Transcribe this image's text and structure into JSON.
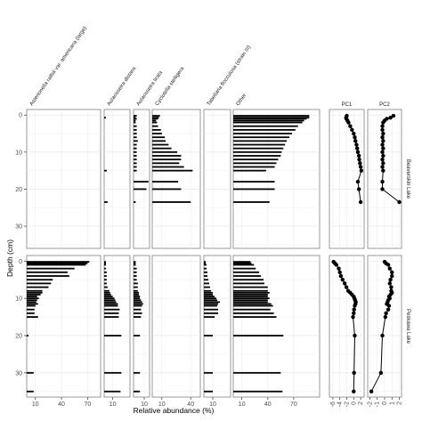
{
  "chart_data": {
    "type": "stratigraphic-diagram",
    "xlabel": "Relative abundance (%)",
    "ylabel": "Depth (cm)",
    "taxa": [
      "Asterionella ralfsii var. americana (large)",
      "Aulacoseira distans",
      "Aulacoseira lirata",
      "Cyclotella stelligera",
      "Tabellaria flocculosa (strain III)",
      "Other"
    ],
    "pc_panels": [
      "PC1",
      "PC2"
    ],
    "lakes": [
      "Beaverskin Lake",
      "Peskawa Lake"
    ],
    "depth_ticks": [
      0,
      10,
      20,
      30
    ],
    "abundance_ticks": [
      10,
      40,
      70
    ],
    "pc1_ticks": [
      -6,
      -4,
      -2,
      0,
      2
    ],
    "pc2_ticks": [
      -2,
      -1,
      0,
      1,
      2
    ],
    "beaverskin": {
      "depth_range": [
        -1.5,
        36
      ],
      "depths": [
        0.2,
        0.7,
        1,
        1.5,
        2,
        3,
        4,
        5,
        6,
        7,
        8,
        9,
        10,
        11,
        12,
        13,
        14,
        15,
        18,
        20,
        23.5
      ],
      "values": {
        "Asterionella ralfsii var. americana (large)": [
          0,
          0,
          0,
          0,
          0,
          0,
          0,
          0,
          0,
          0,
          0,
          0,
          0,
          0,
          0,
          0,
          0,
          0,
          0,
          0,
          0
        ],
        "Aulacoseira distans": [
          0,
          2,
          0,
          0,
          0,
          0,
          0,
          0,
          0,
          0,
          0,
          0,
          0,
          0,
          0,
          0,
          0,
          3,
          0,
          0,
          4
        ],
        "Aulacoseira lirata": [
          3,
          2,
          3,
          2,
          2,
          3,
          3,
          3,
          3,
          4,
          3,
          3,
          3,
          3,
          3,
          3,
          3,
          3,
          14,
          12,
          2
        ],
        "Cyclotella stelligera": [
          8,
          7,
          6,
          4,
          5,
          6,
          9,
          10,
          13,
          14,
          17,
          20,
          26,
          30,
          30,
          28,
          33,
          42,
          27,
          30,
          40
        ],
        "Tabellaria flocculosa (strain III)": [
          0,
          0,
          0,
          0,
          0,
          0,
          0,
          0,
          0,
          0,
          0,
          0,
          0,
          0,
          0,
          0,
          0,
          0,
          0,
          0,
          0
        ],
        "Other": [
          88,
          88,
          85,
          82,
          80,
          75,
          72,
          68,
          65,
          62,
          60,
          58,
          56,
          55,
          52,
          50,
          48,
          38,
          48,
          48,
          42
        ]
      },
      "pc1": [
        -2,
        -2.2,
        -2.1,
        -1.8,
        -1.5,
        -1,
        -0.5,
        0,
        0.3,
        0.5,
        0.8,
        1,
        1.2,
        1.5,
        1.6,
        1.8,
        2,
        2.2,
        1.2,
        1.5,
        2
      ],
      "pc2": [
        1.2,
        0.8,
        0.3,
        0,
        -0.2,
        -0.3,
        -0.3,
        -0.2,
        -0.3,
        -0.2,
        -0.3,
        -0.2,
        -0.3,
        -0.2,
        -0.3,
        -0.2,
        -0.3,
        -0.2,
        -0.3,
        -0.3,
        2
      ]
    },
    "peskawa": {
      "depth_range": [
        -1.5,
        36.5
      ],
      "depths": [
        0.2,
        0.6,
        1,
        2,
        3,
        4,
        5,
        6,
        7,
        8,
        8.5,
        9,
        9.5,
        10,
        10.5,
        11,
        11.5,
        12,
        13,
        14,
        15,
        20,
        30,
        35
      ],
      "values": {
        "Asterionella ralfsii var. americana (large)": [
          72,
          70,
          68,
          55,
          47,
          49,
          30,
          28,
          25,
          18,
          18,
          16,
          12,
          14,
          12,
          11,
          13,
          10,
          9,
          9,
          13,
          2,
          8,
          8
        ],
        "Aulacoseira distans": [
          2,
          2,
          2,
          2,
          3,
          3,
          3,
          3,
          4,
          6,
          7,
          8,
          10,
          12,
          13,
          14,
          16,
          16,
          18,
          17,
          17,
          20,
          20,
          19
        ],
        "Aulacoseira lirata": [
          2,
          2,
          2,
          3,
          3,
          3,
          3,
          4,
          4,
          4,
          5,
          5,
          6,
          6,
          7,
          8,
          9,
          8,
          7,
          8,
          7,
          6,
          6,
          6
        ],
        "Cyclotella stelligera": [
          0,
          0,
          0,
          0,
          0,
          0,
          0,
          0,
          0,
          0,
          0,
          0,
          0,
          0,
          0,
          0,
          0,
          0,
          0,
          0,
          0,
          0,
          0,
          0
        ],
        "Tabellaria flocculosa (strain III)": [
          2,
          2,
          3,
          3,
          4,
          4,
          5,
          6,
          7,
          8,
          10,
          10,
          12,
          14,
          15,
          18,
          16,
          15,
          16,
          16,
          12,
          10,
          10,
          10
        ],
        "Other": [
          20,
          21,
          24,
          26,
          30,
          32,
          35,
          36,
          40,
          40,
          42,
          40,
          40,
          42,
          40,
          40,
          44,
          46,
          43,
          47,
          50,
          58,
          55,
          57
        ]
      },
      "pc1": [
        -5.8,
        -5.4,
        -5,
        -4.3,
        -4,
        -3.7,
        -3.2,
        -2.6,
        -2.1,
        -1.6,
        -1,
        -0.5,
        0,
        0.2,
        0.4,
        0.6,
        0.5,
        0.3,
        0.1,
        0,
        -0.2,
        0.3,
        0.1,
        0
      ],
      "pc2": [
        0,
        0.2,
        0.5,
        0.7,
        1,
        1,
        0.8,
        0.7,
        0.9,
        0.9,
        1,
        0.8,
        0.6,
        0.7,
        0.5,
        0.4,
        0.3,
        0.6,
        0.5,
        0.2,
        0.1,
        -0.3,
        -0.5,
        -1.8
      ]
    }
  }
}
